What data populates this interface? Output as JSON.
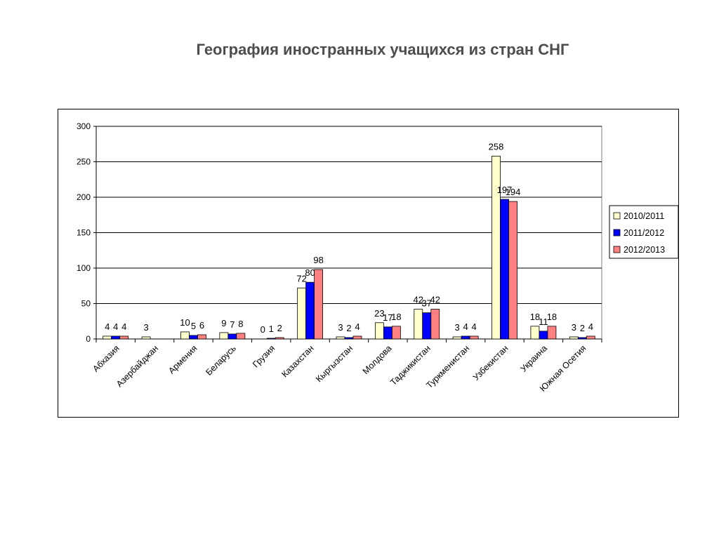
{
  "page": {
    "title": "География иностранных учащихся из стран СНГ"
  },
  "chart_data": {
    "type": "bar",
    "title": "",
    "xlabel": "",
    "ylabel": "",
    "ylim": [
      0,
      300
    ],
    "yticks": [
      0,
      50,
      100,
      150,
      200,
      250,
      300
    ],
    "grid": true,
    "legend_position": "right",
    "categories": [
      "Абхазия",
      "Азербайджан",
      "Армения",
      "Беларусь",
      "Грузия",
      "Казахстан",
      "Кыргызстан",
      "Молдова",
      "Таджикистан",
      "Туркменистан",
      "Узбекистан",
      "Украина",
      "Южная Осетия"
    ],
    "series": [
      {
        "name": "2010/2011",
        "color": "#ffffcc",
        "values": [
          4,
          3,
          10,
          9,
          0,
          72,
          3,
          23,
          42,
          3,
          258,
          18,
          3
        ]
      },
      {
        "name": "2011/2012",
        "color": "#0000ff",
        "values": [
          4,
          null,
          5,
          7,
          1,
          80,
          2,
          17,
          37,
          4,
          197,
          11,
          2
        ]
      },
      {
        "name": "2012/2013",
        "color": "#ff8080",
        "values": [
          4,
          null,
          6,
          8,
          2,
          98,
          4,
          18,
          42,
          4,
          194,
          18,
          4
        ]
      }
    ]
  }
}
